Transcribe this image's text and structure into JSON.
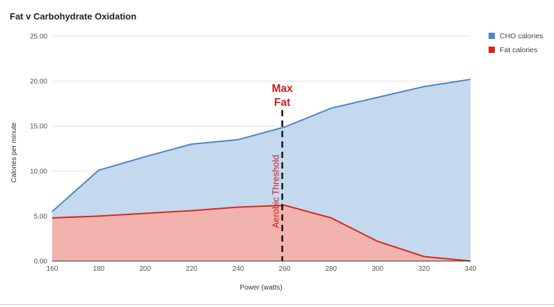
{
  "chart_data": {
    "type": "area",
    "title": "Fat v Carbohydrate Oxidation",
    "xlabel": "Power (watts)",
    "ylabel": "Calories per minute",
    "x": [
      160,
      180,
      200,
      220,
      240,
      260,
      280,
      300,
      320,
      340
    ],
    "x_ticks": [
      "160",
      "180",
      "200",
      "220",
      "240",
      "260",
      "280",
      "300",
      "320",
      "340"
    ],
    "y_ticks": [
      "0.00",
      "5.00",
      "10.00",
      "15.00",
      "20.00",
      "25.00"
    ],
    "xlim": [
      160,
      340
    ],
    "ylim": [
      0,
      25
    ],
    "grid": true,
    "legend_position": "top-right",
    "series": [
      {
        "name": "CHO calories",
        "color": "#4a86c8",
        "fill": "#c4d8ee",
        "values": [
          5.5,
          10.1,
          11.6,
          13.0,
          13.5,
          14.9,
          17.0,
          18.2,
          19.4,
          20.2
        ]
      },
      {
        "name": "Fat calories",
        "color": "#d4281c",
        "fill": "#f2b2ae",
        "values": [
          4.8,
          5.0,
          5.3,
          5.6,
          6.0,
          6.2,
          4.8,
          2.2,
          0.5,
          0.0
        ]
      }
    ],
    "annotations": {
      "marker_x": 259,
      "max_fat_line1": "Max",
      "max_fat_line2": "Fat",
      "vertical_label": "Aerobic Threshold",
      "annotation_color": "#cc1f1a"
    }
  }
}
